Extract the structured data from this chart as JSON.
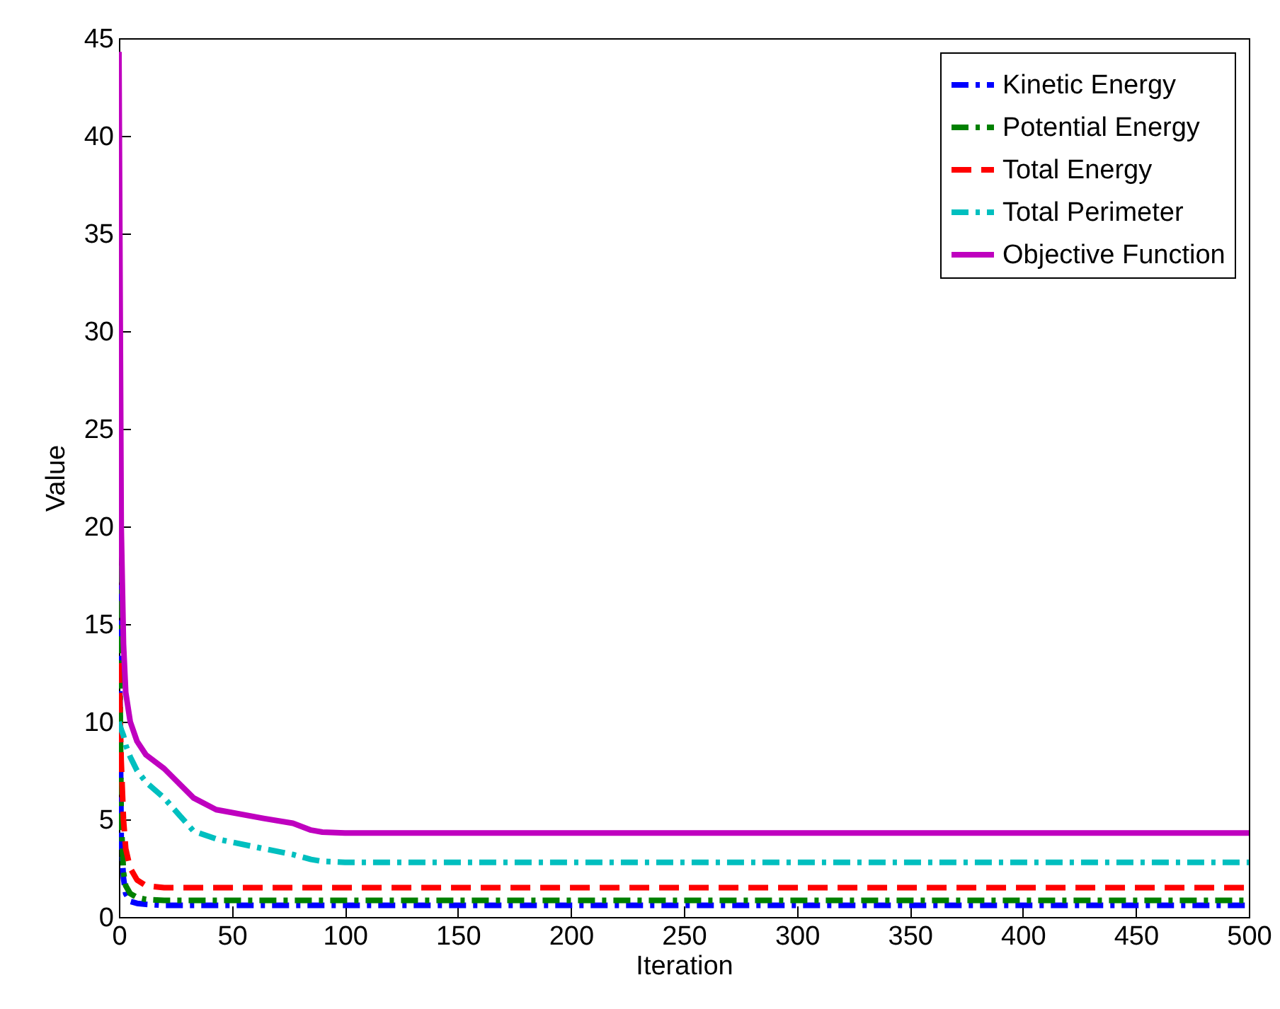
{
  "chart_data": {
    "type": "line",
    "xlabel": "Iteration",
    "ylabel": "Value",
    "xlim": [
      0,
      500
    ],
    "ylim": [
      0,
      45
    ],
    "xticks": [
      0,
      50,
      100,
      150,
      200,
      250,
      300,
      350,
      400,
      450,
      500
    ],
    "yticks": [
      0,
      5,
      10,
      15,
      20,
      25,
      30,
      35,
      40,
      45
    ],
    "grid": false,
    "legend": "top right",
    "marker": "none",
    "x": [
      0,
      1,
      2,
      3,
      5,
      8,
      12,
      20,
      33,
      43,
      64,
      77,
      85,
      90,
      100,
      200,
      300,
      400,
      500
    ],
    "series": [
      {
        "name": "Kinetic Energy",
        "color": "#0000ff",
        "line_style": "dashdot",
        "values": [
          17,
          4,
          2,
          1.2,
          0.8,
          0.7,
          0.65,
          0.6,
          0.6,
          0.6,
          0.6,
          0.6,
          0.6,
          0.6,
          0.6,
          0.6,
          0.6,
          0.6,
          0.6
        ]
      },
      {
        "name": "Potential Energy",
        "color": "#008000",
        "line_style": "dashdot",
        "values": [
          18,
          5,
          2.3,
          1.6,
          1.2,
          1.0,
          0.9,
          0.85,
          0.85,
          0.85,
          0.85,
          0.85,
          0.85,
          0.85,
          0.85,
          0.85,
          0.85,
          0.85,
          0.85
        ]
      },
      {
        "name": "Total Energy",
        "color": "#ff0000",
        "line_style": "dashed",
        "values": [
          13,
          8,
          5,
          3.5,
          2.5,
          1.9,
          1.6,
          1.5,
          1.5,
          1.5,
          1.5,
          1.5,
          1.5,
          1.5,
          1.5,
          1.5,
          1.5,
          1.5,
          1.5
        ]
      },
      {
        "name": "Total Perimeter",
        "color": "#00bfbf",
        "line_style": "dashdot",
        "values": [
          10,
          9.6,
          9.3,
          8.8,
          8.2,
          7.5,
          6.9,
          6.1,
          4.4,
          4.0,
          3.5,
          3.2,
          2.95,
          2.85,
          2.8,
          2.8,
          2.8,
          2.8,
          2.8
        ]
      },
      {
        "name": "Objective Function",
        "color": "#bf00bf",
        "line_style": "solid",
        "values": [
          44.3,
          20,
          14,
          11.5,
          10,
          9,
          8.3,
          7.6,
          6.1,
          5.5,
          5.05,
          4.8,
          4.45,
          4.35,
          4.3,
          4.3,
          4.3,
          4.3,
          4.3
        ]
      }
    ]
  }
}
